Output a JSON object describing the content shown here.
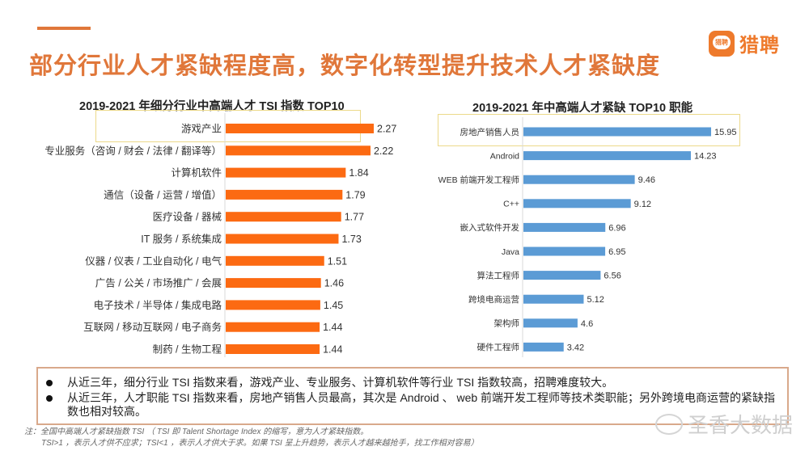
{
  "header": {
    "title": "部分行业人才紧缺程度高，数字化转型提升技术人才紧缺度",
    "logo_icon_text": "猎聘",
    "logo_text": "猎聘",
    "accent_color": "#e0773a"
  },
  "chart_data": [
    {
      "type": "bar",
      "orientation": "horizontal",
      "title": "2019-2021 年细分行业中高端人才 TSI 指数 TOP10",
      "categories": [
        "游戏产业",
        "专业服务（咨询 / 财会 / 法律 / 翻译等）",
        "计算机软件",
        "通信（设备 / 运营 / 增值）",
        "医疗设备 / 器械",
        "IT 服务 / 系统集成",
        "仪器 / 仪表 / 工业自动化 / 电气",
        "广告 / 公关 / 市场推广 / 会展",
        "电子技术 / 半导体 / 集成电路",
        "互联网 / 移动互联网 / 电子商务",
        "制药 / 生物工程"
      ],
      "values": [
        2.27,
        2.22,
        1.84,
        1.79,
        1.77,
        1.73,
        1.51,
        1.46,
        1.45,
        1.44,
        1.44
      ],
      "value_labels": [
        "2.27",
        "2.22",
        "1.84",
        "1.79",
        "1.77",
        "1.73",
        "1.51",
        "1.46",
        "1.45",
        "1.44",
        "1.44"
      ],
      "color": "#fc6a12",
      "highlighted": "游戏产业",
      "xlim": [
        0,
        2.5
      ],
      "grid": false,
      "legend": "none"
    },
    {
      "type": "bar",
      "orientation": "horizontal",
      "title": "2019-2021 年中高端人才紧缺 TOP10 职能",
      "categories": [
        "房地产销售人员",
        "Android",
        "WEB 前端开发工程师",
        "C++",
        "嵌入式软件开发",
        "Java",
        "算法工程师",
        "跨境电商运营",
        "架构师",
        "硬件工程师"
      ],
      "values": [
        15.95,
        14.23,
        9.46,
        9.12,
        6.96,
        6.95,
        6.56,
        5.12,
        4.6,
        3.42
      ],
      "value_labels": [
        "15.95",
        "14.23",
        "9.46",
        "9.12",
        "6.96",
        "6.95",
        "6.56",
        "5.12",
        "4.6",
        "3.42"
      ],
      "color": "#5b9bd5",
      "highlighted": "房地产销售人员",
      "xlim": [
        0,
        17
      ],
      "grid": false,
      "legend": "none"
    }
  ],
  "summary": {
    "items": [
      "从近三年，细分行业 TSI 指数来看，游戏产业、专业服务、计算机软件等行业 TSI 指数较高，招聘难度较大。",
      "从近三年，人才职能 TSI 指数来看，房地产销售人员最高，其次是 Android 、 web 前端开发工程师等技术类职能；另外跨境电商运营的紧缺指数也相对较高。"
    ]
  },
  "note": {
    "line1": "注：全国中高端人才紧缺指数 TSI （ TSI 即 Talent Shortage Index 的缩写，意为人才紧缺指数。",
    "line2": "TSI>1 ，表示人才供不应求；TSI<1 ，表示人才供大于求。如果 TSI 呈上升趋势，表示人才越来越抢手，找工作相对容易）"
  },
  "watermark": {
    "text": "圣香大数据"
  }
}
